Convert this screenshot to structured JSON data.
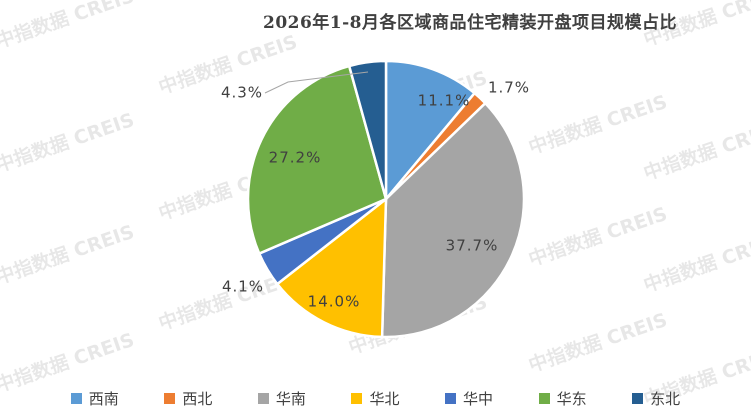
{
  "watermark_text": "中指数据 CREIS",
  "chart_data": {
    "type": "pie",
    "title": "2026年1-8月各区域商品住宅精装开盘项目规模占比",
    "legend_position": "bottom",
    "slices": [
      {
        "label": "西南",
        "value": 11.1,
        "value_label": "11.1%",
        "color": "#5B9BD5"
      },
      {
        "label": "西北",
        "value": 1.7,
        "value_label": "1.7%",
        "color": "#ED7D31"
      },
      {
        "label": "华南",
        "value": 37.7,
        "value_label": "37.7%",
        "color": "#A5A5A5"
      },
      {
        "label": "华北",
        "value": 14.0,
        "value_label": "14.0%",
        "color": "#FFC000"
      },
      {
        "label": "华中",
        "value": 4.1,
        "value_label": "4.1%",
        "color": "#4472C4"
      },
      {
        "label": "华东",
        "value": 27.2,
        "value_label": "27.2%",
        "color": "#70AD47"
      },
      {
        "label": "东北",
        "value": 4.3,
        "value_label": "4.3%",
        "color": "#255E91"
      }
    ]
  }
}
